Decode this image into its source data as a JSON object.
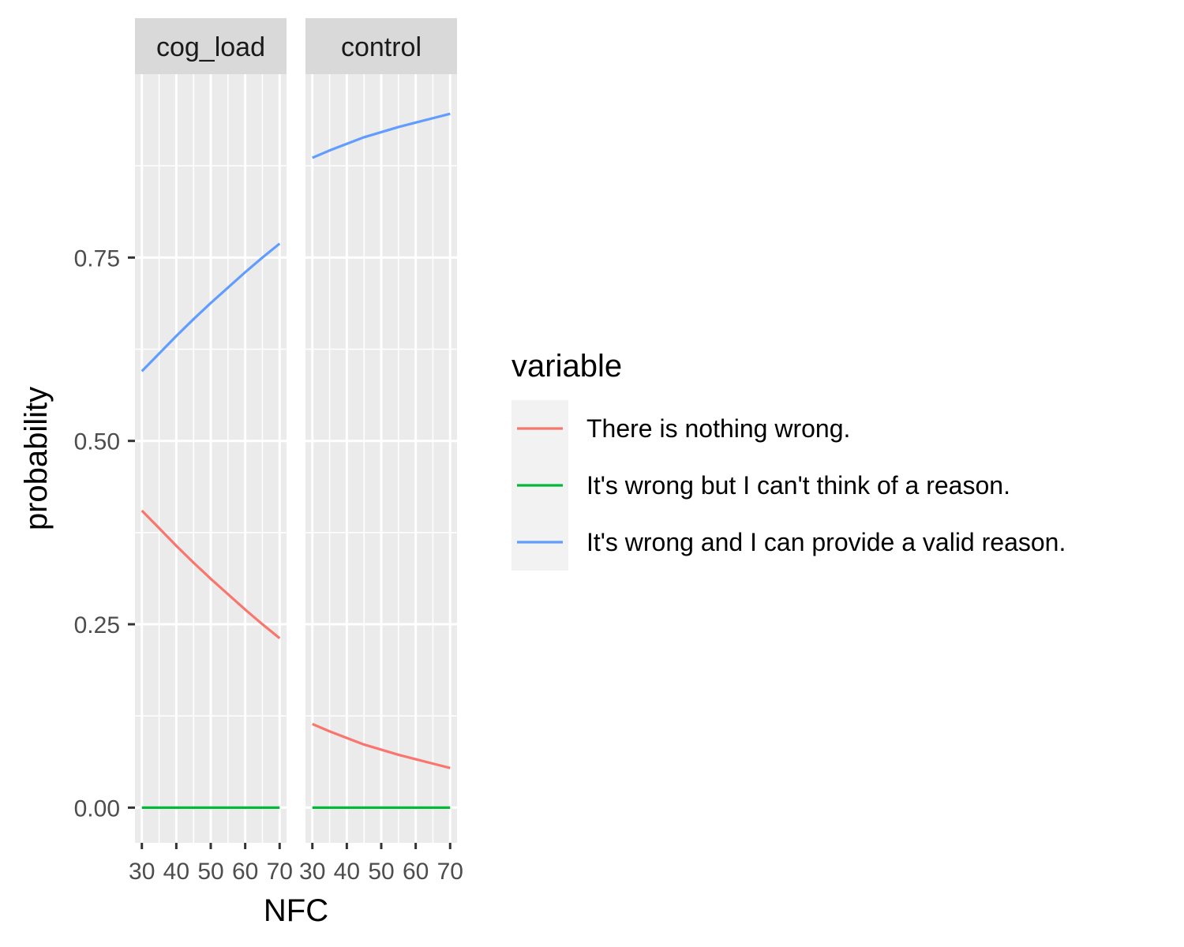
{
  "chart_data": {
    "type": "line",
    "xlabel": "NFC",
    "ylabel": "probability",
    "xlim": [
      28,
      72
    ],
    "ylim": [
      -0.048,
      1.0
    ],
    "x_ticks": [
      30,
      40,
      50,
      60,
      70
    ],
    "y_ticks": [
      0.0,
      0.25,
      0.5,
      0.75
    ],
    "y_tick_labels": [
      "0.00",
      "0.25",
      "0.50",
      "0.75"
    ],
    "x_tick_labels": [
      "30",
      "40",
      "50",
      "60",
      "70"
    ],
    "grid": true,
    "legend": {
      "title": "variable",
      "placement": "right",
      "entries": [
        {
          "label": "There is nothing wrong.",
          "color": "#F8766D"
        },
        {
          "label": "It's wrong but I can't think of a reason.",
          "color": "#00BA38"
        },
        {
          "label": "It's wrong and I can provide a valid reason.",
          "color": "#619CFF"
        }
      ]
    },
    "x": [
      30,
      35,
      40,
      45,
      50,
      55,
      60,
      65,
      70
    ],
    "panels": [
      {
        "facet": "cog_load",
        "series": [
          {
            "name": "There is nothing wrong.",
            "color": "#F8766D",
            "values": [
              0.405,
              0.381,
              0.357,
              0.334,
              0.312,
              0.291,
              0.27,
              0.25,
              0.231
            ]
          },
          {
            "name": "It's wrong but I can't think of a reason.",
            "color": "#00BA38",
            "values": [
              0.0,
              0.0,
              0.0,
              0.0,
              0.0,
              0.0,
              0.0,
              0.0,
              0.0
            ]
          },
          {
            "name": "It's wrong and I can provide a valid reason.",
            "color": "#619CFF",
            "values": [
              0.595,
              0.619,
              0.643,
              0.666,
              0.688,
              0.709,
              0.73,
              0.75,
              0.769
            ]
          }
        ]
      },
      {
        "facet": "control",
        "series": [
          {
            "name": "There is nothing wrong.",
            "color": "#F8766D",
            "values": [
              0.114,
              0.104,
              0.095,
              0.086,
              0.079,
              0.072,
              0.066,
              0.06,
              0.054
            ]
          },
          {
            "name": "It's wrong but I can't think of a reason.",
            "color": "#00BA38",
            "values": [
              0.0,
              0.0,
              0.0,
              0.0,
              0.0,
              0.0,
              0.0,
              0.0,
              0.0
            ]
          },
          {
            "name": "It's wrong and I can provide a valid reason.",
            "color": "#619CFF",
            "values": [
              0.886,
              0.896,
              0.905,
              0.914,
              0.921,
              0.928,
              0.934,
              0.94,
              0.946
            ]
          }
        ]
      }
    ]
  }
}
